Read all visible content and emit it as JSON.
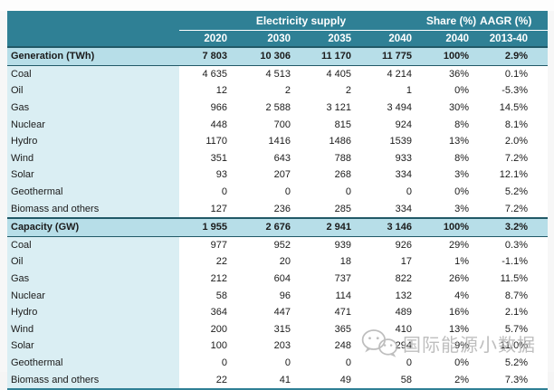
{
  "chart_data": {
    "type": "table",
    "header": {
      "group_supply": "Electricity supply",
      "group_share": "Share (%)",
      "group_aagr": "AAGR (%)",
      "years": [
        "2020",
        "2030",
        "2035",
        "2040"
      ],
      "share_year": "2040",
      "aagr_period": "2013-40"
    },
    "columns": [
      "2020",
      "2030",
      "2035",
      "2040",
      "Share (%) 2040",
      "AAGR (%) 2013-40"
    ],
    "sections": [
      {
        "label": "Generation (TWh)",
        "values": [
          "7 803",
          "10 306",
          "11 170",
          "11 775",
          "100%",
          "2.9%"
        ],
        "rows": [
          {
            "label": "Coal",
            "values": [
              "4 635",
              "4 513",
              "4 405",
              "4 214",
              "36%",
              "0.1%"
            ]
          },
          {
            "label": "Oil",
            "values": [
              "12",
              "2",
              "2",
              "1",
              "0%",
              "-5.3%"
            ]
          },
          {
            "label": "Gas",
            "values": [
              "966",
              "2 588",
              "3 121",
              "3 494",
              "30%",
              "14.5%"
            ]
          },
          {
            "label": "Nuclear",
            "values": [
              "448",
              "700",
              "815",
              "924",
              "8%",
              "8.1%"
            ]
          },
          {
            "label": "Hydro",
            "values": [
              "1170",
              "1416",
              "1486",
              "1539",
              "13%",
              "2.0%"
            ]
          },
          {
            "label": "Wind",
            "values": [
              "351",
              "643",
              "788",
              "933",
              "8%",
              "7.2%"
            ]
          },
          {
            "label": "Solar",
            "values": [
              "93",
              "207",
              "268",
              "334",
              "3%",
              "12.1%"
            ]
          },
          {
            "label": "Geothermal",
            "values": [
              "0",
              "0",
              "0",
              "0",
              "0%",
              "5.2%"
            ]
          },
          {
            "label": "Biomass and others",
            "values": [
              "127",
              "236",
              "285",
              "334",
              "3%",
              "7.2%"
            ]
          }
        ]
      },
      {
        "label": "Capacity (GW)",
        "values": [
          "1 955",
          "2 676",
          "2 941",
          "3 146",
          "100%",
          "3.2%"
        ],
        "rows": [
          {
            "label": "Coal",
            "values": [
              "977",
              "952",
              "939",
              "926",
              "29%",
              "0.3%"
            ]
          },
          {
            "label": "Oil",
            "values": [
              "22",
              "20",
              "18",
              "17",
              "1%",
              "-1.1%"
            ]
          },
          {
            "label": "Gas",
            "values": [
              "212",
              "604",
              "737",
              "822",
              "26%",
              "11.5%"
            ]
          },
          {
            "label": "Nuclear",
            "values": [
              "58",
              "96",
              "114",
              "132",
              "4%",
              "8.7%"
            ]
          },
          {
            "label": "Hydro",
            "values": [
              "364",
              "447",
              "471",
              "489",
              "16%",
              "2.1%"
            ]
          },
          {
            "label": "Wind",
            "values": [
              "200",
              "315",
              "365",
              "410",
              "13%",
              "5.7%"
            ]
          },
          {
            "label": "Solar",
            "values": [
              "100",
              "203",
              "248",
              "294",
              "9%",
              "11.0%"
            ]
          },
          {
            "label": "Geothermal",
            "values": [
              "0",
              "0",
              "0",
              "0",
              "0%",
              "5.2%"
            ]
          },
          {
            "label": "Biomass and others",
            "values": [
              "22",
              "41",
              "49",
              "58",
              "2%",
              "7.3%"
            ]
          }
        ]
      }
    ]
  },
  "watermark": {
    "icon": "wechat-icon",
    "text": "国际能源小数据"
  },
  "colors": {
    "header_teal": "#2F8095",
    "section_blue": "#B7DEE8",
    "label_blue": "#DAEEF3",
    "border_dark": "#215967",
    "watermark_gray": "#B3B3B3"
  }
}
